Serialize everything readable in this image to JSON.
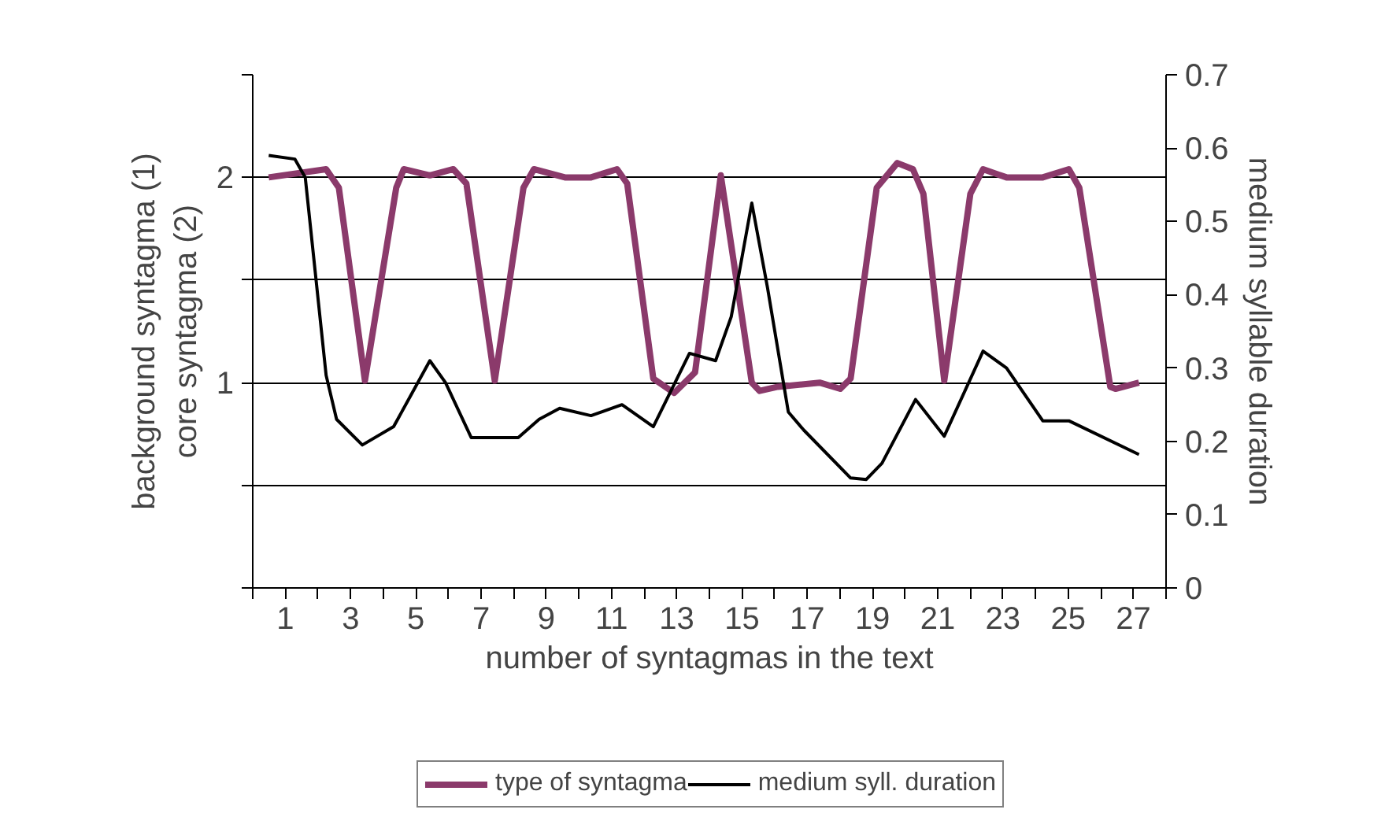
{
  "chart_data": {
    "type": "line",
    "xlabel": "number of syntagmas in the text",
    "ylabel": "background syntagma (1)\ncore syntagma (2)",
    "y2label": "medium syllable duration",
    "xlim": [
      0,
      28
    ],
    "xticks": [
      {
        "value": 0,
        "label": null
      },
      1,
      {
        "value": 2,
        "label": null
      },
      3,
      {
        "value": 4,
        "label": null
      },
      5,
      {
        "value": 6,
        "label": null
      },
      7,
      {
        "value": 8,
        "label": null
      },
      9,
      {
        "value": 10,
        "label": null
      },
      11,
      {
        "value": 12,
        "label": null
      },
      13,
      {
        "value": 14,
        "label": null
      },
      15,
      {
        "value": 16,
        "label": null
      },
      17,
      {
        "value": 18,
        "label": null
      },
      19,
      {
        "value": 20,
        "label": null
      },
      21,
      {
        "value": 22,
        "label": null
      },
      23,
      {
        "value": 24,
        "label": null
      },
      25,
      {
        "value": 26,
        "label": null
      },
      27,
      {
        "value": 28,
        "label": null
      }
    ],
    "ylim": [
      0,
      2.5
    ],
    "yticks": [
      {
        "value": 0,
        "label": null
      },
      {
        "value": 0.5,
        "label": null
      },
      1,
      {
        "value": 1.5,
        "label": null
      },
      2,
      {
        "value": 2.5,
        "label": null
      }
    ],
    "y2lim": [
      0,
      0.7
    ],
    "y2ticks": [
      0,
      0.1,
      0.2,
      0.3,
      0.4,
      0.5,
      0.6,
      0.7
    ],
    "grid": "y",
    "legend": "bottom",
    "series": [
      {
        "name": "type of syntagma",
        "color": "#8b3a6b",
        "x": [
          0.49,
          2.25,
          2.64,
          3.44,
          4.4,
          4.63,
          5.43,
          6.15,
          6.55,
          7.42,
          8.3,
          8.62,
          9.57,
          10.37,
          11.17,
          11.48,
          12.28,
          12.92,
          13.56,
          14.35,
          15.3,
          15.54,
          16.1,
          17.38,
          18.01,
          18.33,
          19.13,
          19.76,
          20.24,
          20.56,
          21.2,
          22.0,
          22.39,
          23.11,
          24.22,
          25.02,
          25.34,
          26.29,
          26.45,
          27.17
        ],
        "values": [
          2.0,
          2.04,
          1.95,
          1.01,
          1.95,
          2.04,
          2.01,
          2.04,
          1.97,
          1.01,
          1.95,
          2.04,
          2.0,
          2.0,
          2.04,
          1.97,
          1.02,
          0.95,
          1.05,
          2.01,
          1.0,
          0.96,
          0.98,
          1.0,
          0.97,
          1.02,
          1.95,
          2.07,
          2.04,
          1.92,
          1.01,
          1.92,
          2.04,
          2.0,
          2.0,
          2.04,
          1.95,
          0.98,
          0.97,
          1.0
        ]
      },
      {
        "name": "medium syll. duration",
        "color": "#000000",
        "axis": "y2",
        "x": [
          0.49,
          1.29,
          1.61,
          2.25,
          2.57,
          3.36,
          4.32,
          5.43,
          5.91,
          6.7,
          8.14,
          8.78,
          9.41,
          10.37,
          11.32,
          12.28,
          13.39,
          14.19,
          14.67,
          15.3,
          15.78,
          16.42,
          16.9,
          18.33,
          18.81,
          19.29,
          20.32,
          21.2,
          22.39,
          23.11,
          24.22,
          25.02,
          27.17
        ],
        "values": [
          0.59,
          0.585,
          0.56,
          0.29,
          0.23,
          0.195,
          0.22,
          0.31,
          0.28,
          0.205,
          0.205,
          0.23,
          0.245,
          0.235,
          0.25,
          0.22,
          0.32,
          0.31,
          0.37,
          0.525,
          0.41,
          0.24,
          0.215,
          0.15,
          0.148,
          0.17,
          0.257,
          0.207,
          0.323,
          0.3,
          0.228,
          0.228,
          0.182
        ]
      }
    ]
  }
}
